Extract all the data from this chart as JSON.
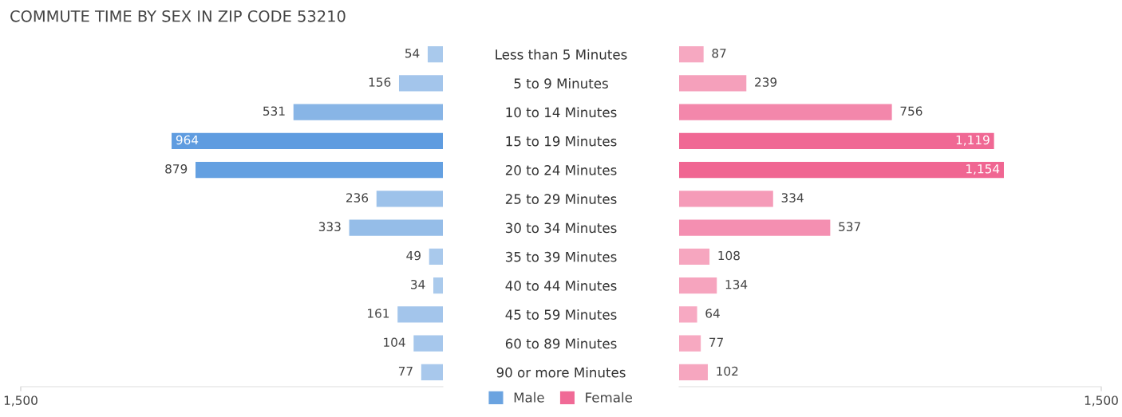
{
  "chart_data": [
    {
      "type": "bar",
      "orientation": "horizontal",
      "title": "COMMUTE TIME BY SEX IN ZIP CODE 53210",
      "categories": [
        "Less than 5 Minutes",
        "5 to 9 Minutes",
        "10 to 14 Minutes",
        "15 to 19 Minutes",
        "20 to 24 Minutes",
        "25 to 29 Minutes",
        "30 to 34 Minutes",
        "35 to 39 Minutes",
        "40 to 44 Minutes",
        "45 to 59 Minutes",
        "60 to 89 Minutes",
        "90 or more Minutes"
      ],
      "xlim": [
        1500,
        0
      ],
      "xticks": [
        {
          "value": 1500,
          "label": "1,500"
        }
      ],
      "series": [
        {
          "name": "Male",
          "color": "#6aa3e0",
          "values": [
            54,
            156,
            531,
            964,
            879,
            236,
            333,
            49,
            34,
            161,
            104,
            77
          ],
          "value_labels": [
            "54",
            "156",
            "531",
            "964",
            "879",
            "236",
            "333",
            "49",
            "34",
            "161",
            "104",
            "77"
          ],
          "colors": [
            "#a9c9ec",
            "#a3c5eb",
            "#88b5e6",
            "#5f9ce0",
            "#64a0e1",
            "#9dc2ea",
            "#95bde8",
            "#a9c9ec",
            "#aacaec",
            "#a3c5eb",
            "#a6c7ec",
            "#a8c8ec"
          ]
        }
      ],
      "legend": "bottom"
    },
    {
      "type": "bar",
      "orientation": "horizontal",
      "tick_labels": "x",
      "xlim": [
        0,
        1500
      ],
      "xticks": [
        {
          "value": 1500,
          "label": "1,500"
        }
      ],
      "series": [
        {
          "name": "Female",
          "color": "#f06a96",
          "values": [
            87,
            239,
            756,
            1119,
            1154,
            334,
            537,
            108,
            134,
            64,
            77,
            102
          ],
          "value_labels": [
            "87",
            "239",
            "756",
            "1,119",
            "1,154",
            "334",
            "537",
            "108",
            "134",
            "64",
            "77",
            "102"
          ],
          "colors": [
            "#f6a8c1",
            "#f5a0bb",
            "#f387ab",
            "#f06894",
            "#f06692",
            "#f59bb8",
            "#f48fb1",
            "#f6a6bf",
            "#f6a4be",
            "#f7a9c2",
            "#f7a9c1",
            "#f6a6bf"
          ]
        }
      ],
      "legend": "bottom"
    }
  ]
}
